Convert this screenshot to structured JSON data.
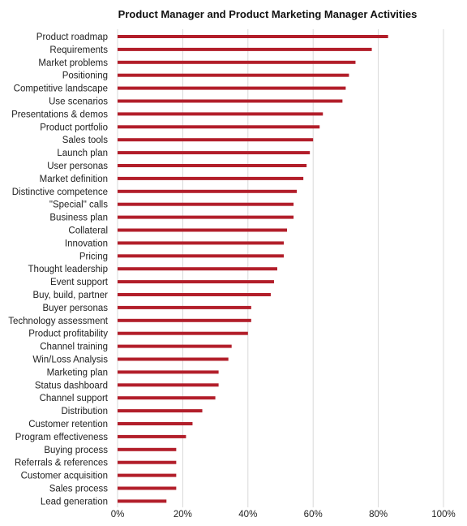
{
  "chart_data": {
    "type": "bar",
    "orientation": "horizontal",
    "title": "Product Manager and Product Marketing Manager Activities",
    "categories": [
      "Product roadmap",
      "Requirements",
      "Market problems",
      "Positioning",
      "Competitive landscape",
      "Use scenarios",
      "Presentations & demos",
      "Product portfolio",
      "Sales tools",
      "Launch plan",
      "User personas",
      "Market definition",
      "Distinctive competence",
      "\"Special\" calls",
      "Business plan",
      "Collateral",
      "Innovation",
      "Pricing",
      "Thought leadership",
      "Event support",
      "Buy, build, partner",
      "Buyer personas",
      "Technology assessment",
      "Product profitability",
      "Channel training",
      "Win/Loss Analysis",
      "Marketing plan",
      "Status dashboard",
      "Channel support",
      "Distribution",
      "Customer retention",
      "Program effectiveness",
      "Buying process",
      "Referrals & references",
      "Customer acquisition",
      "Sales process",
      "Lead generation"
    ],
    "values": [
      83,
      78,
      73,
      71,
      70,
      69,
      63,
      62,
      60,
      59,
      58,
      57,
      55,
      54,
      54,
      52,
      51,
      51,
      49,
      48,
      47,
      41,
      41,
      40,
      35,
      34,
      31,
      31,
      30,
      26,
      23,
      21,
      18,
      18,
      18,
      18,
      15
    ],
    "xlim": [
      0,
      100
    ],
    "xticks": [
      "0%",
      "20%",
      "40%",
      "60%",
      "80%",
      "100%"
    ],
    "xtick_values": [
      0,
      20,
      40,
      60,
      80,
      100
    ],
    "grid": true,
    "bar_color": "#b21e2a",
    "legend": "none"
  }
}
